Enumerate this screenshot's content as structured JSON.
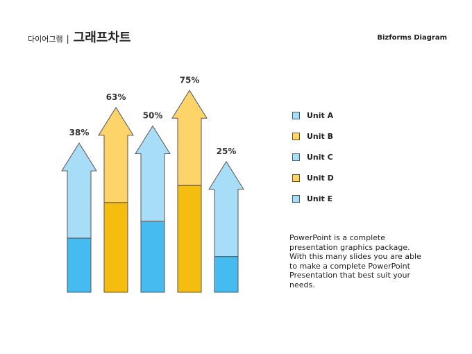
{
  "header": {
    "category": "다이어그램",
    "separator": "|",
    "title": "그래프차트",
    "brand": "Bizforms Diagram"
  },
  "description": "PowerPoint is a complete presentation graphics package. With this many slides you are able to make a complete PowerPoint Presentation that best suit your needs.",
  "colors": {
    "blue_fill": "#45bbf0",
    "blue_light": "#a7ddf7",
    "yellow_fill": "#f5bd10",
    "yellow_light": "#fdd46a",
    "outline": "#555555"
  },
  "legend": [
    {
      "label": "Unit A",
      "color": "#a7ddf7"
    },
    {
      "label": "Unit B",
      "color": "#fdd46a"
    },
    {
      "label": "Unit C",
      "color": "#a7ddf7"
    },
    {
      "label": "Unit D",
      "color": "#fdd46a"
    },
    {
      "label": "Unit E",
      "color": "#a7ddf7"
    }
  ],
  "chart_data": {
    "type": "bar",
    "categories": [
      "Unit A",
      "Unit B",
      "Unit C",
      "Unit D",
      "Unit E"
    ],
    "values": [
      38,
      63,
      50,
      75,
      25
    ],
    "labels": [
      "38%",
      "63%",
      "50%",
      "75%",
      "25%"
    ],
    "ylim": [
      0,
      100
    ],
    "grid": false,
    "legend_position": "right"
  }
}
